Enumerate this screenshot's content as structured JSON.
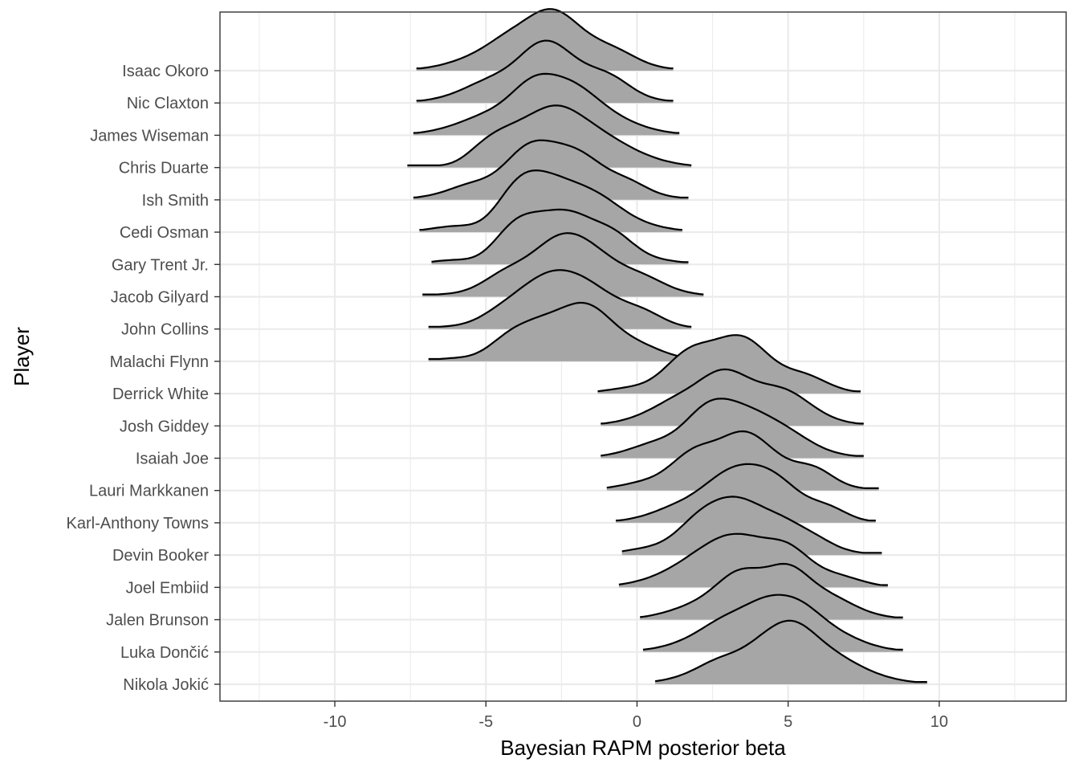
{
  "chart_data": {
    "type": "ridgeline",
    "xlabel": "Bayesian RAPM posterior beta",
    "ylabel": "Player",
    "xlim": [
      -13.8,
      14.2
    ],
    "xticks": [
      -10,
      -5,
      0,
      5,
      10
    ],
    "xtick_labels": [
      "-10",
      "-5",
      "0",
      "5",
      "10"
    ],
    "grid": true,
    "fill_color": "#a6a6a6",
    "players": [
      {
        "name": "Isaac Okoro",
        "min": -7.3,
        "max": 1.2,
        "mode": -3.0
      },
      {
        "name": "Nic Claxton",
        "min": -7.3,
        "max": 1.2,
        "mode": -3.0
      },
      {
        "name": "James Wiseman",
        "min": -7.4,
        "max": 1.4,
        "mode": -3.0
      },
      {
        "name": "Chris Duarte",
        "min": -7.6,
        "max": 1.8,
        "mode": -2.8
      },
      {
        "name": "Ish Smith",
        "min": -7.4,
        "max": 1.7,
        "mode": -2.9
      },
      {
        "name": "Cedi Osman",
        "min": -7.2,
        "max": 1.5,
        "mode": -2.8
      },
      {
        "name": "Gary Trent Jr.",
        "min": -6.8,
        "max": 1.7,
        "mode": -2.6
      },
      {
        "name": "Jacob Gilyard",
        "min": -7.1,
        "max": 2.2,
        "mode": -2.3
      },
      {
        "name": "John Collins",
        "min": -6.9,
        "max": 1.8,
        "mode": -2.4
      },
      {
        "name": "Malachi Flynn",
        "min": -6.9,
        "max": 1.6,
        "mode": -2.3
      },
      {
        "name": "Derrick White",
        "min": -1.3,
        "max": 7.4,
        "mode": 3.0
      },
      {
        "name": "Josh Giddey",
        "min": -1.2,
        "max": 7.5,
        "mode": 3.1
      },
      {
        "name": "Isaiah Joe",
        "min": -1.2,
        "max": 7.5,
        "mode": 3.0
      },
      {
        "name": "Lauri Markkanen",
        "min": -1.0,
        "max": 8.0,
        "mode": 3.3
      },
      {
        "name": "Karl-Anthony Towns",
        "min": -0.7,
        "max": 7.9,
        "mode": 3.6
      },
      {
        "name": "Devin Booker",
        "min": -0.5,
        "max": 8.1,
        "mode": 3.4
      },
      {
        "name": "Joel Embiid",
        "min": -0.6,
        "max": 8.3,
        "mode": 3.6
      },
      {
        "name": "Jalen Brunson",
        "min": 0.1,
        "max": 8.8,
        "mode": 4.3
      },
      {
        "name": "Luka Dončić",
        "min": 0.2,
        "max": 8.8,
        "mode": 4.4
      },
      {
        "name": "Nikola Jokić",
        "min": 0.6,
        "max": 9.6,
        "mode": 4.8
      }
    ]
  }
}
